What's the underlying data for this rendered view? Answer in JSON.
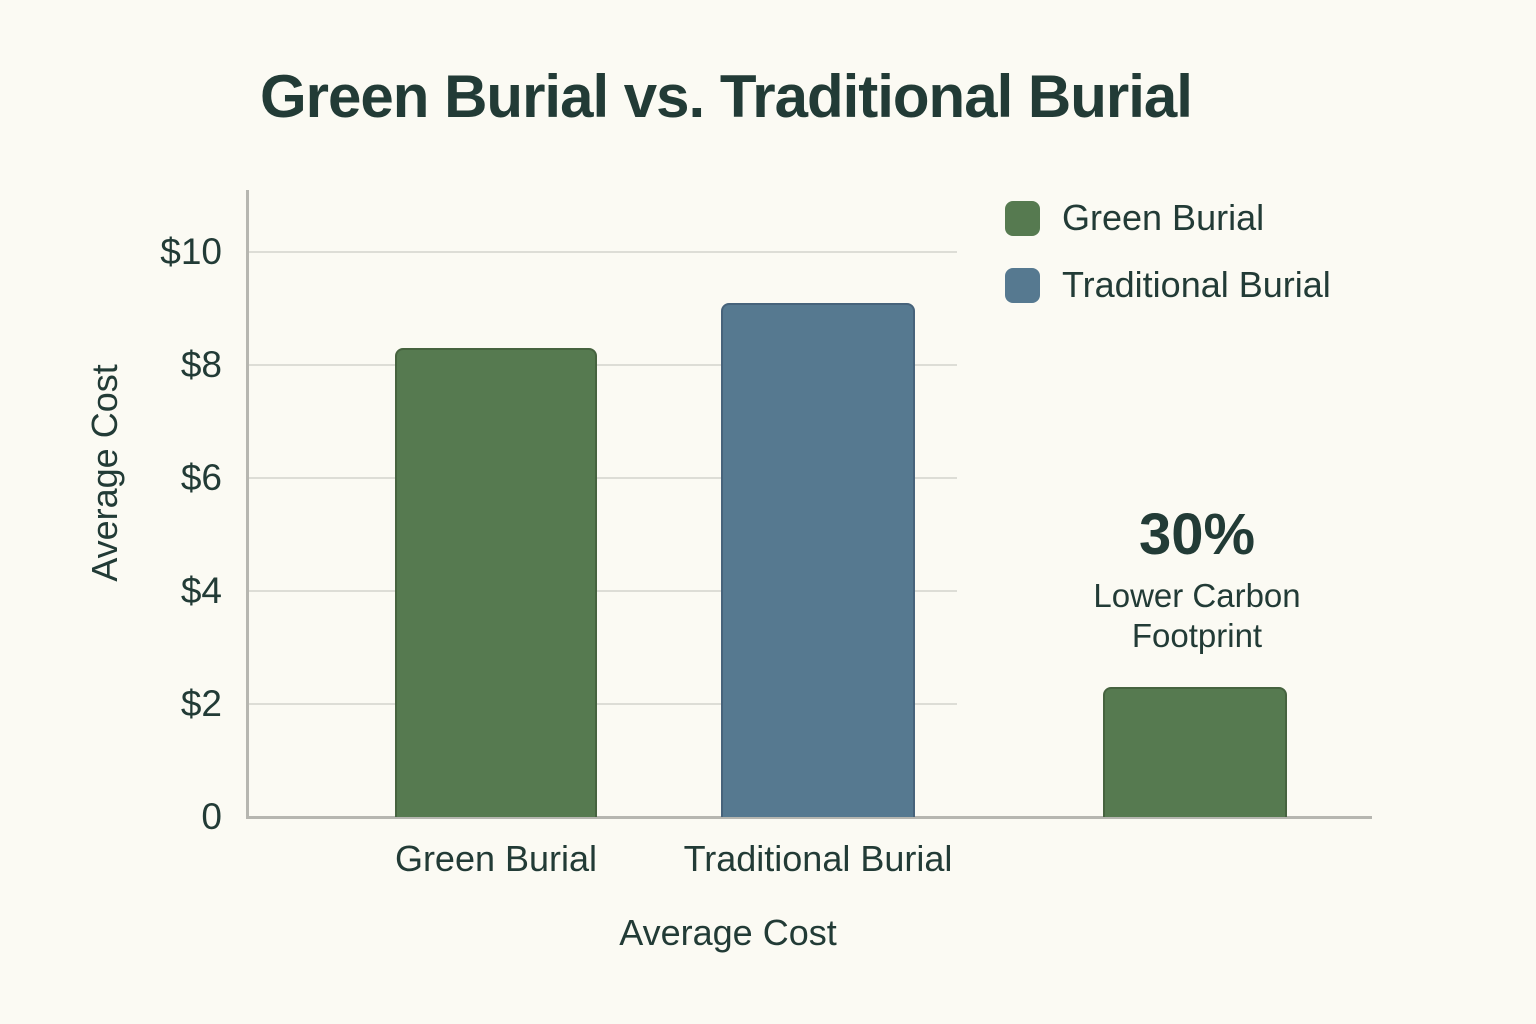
{
  "chart_data": {
    "type": "bar",
    "title": "Green Burial vs. Traditional Burial",
    "xlabel": "Average Cost",
    "ylabel": "Average Cost",
    "categories": [
      "Green Burial",
      "Traditional Burial"
    ],
    "values": [
      8.3,
      9.1
    ],
    "bar_colors": [
      "#567A50",
      "#567990"
    ],
    "ylim": [
      0,
      11.1
    ],
    "grid": true,
    "yticks": [
      {
        "value": 0,
        "label": "0"
      },
      {
        "value": 2,
        "label": "$2"
      },
      {
        "value": 4,
        "label": "$4"
      },
      {
        "value": 6,
        "label": "$6"
      },
      {
        "value": 8,
        "label": "$8"
      },
      {
        "value": 10,
        "label": "$10"
      }
    ],
    "legend": {
      "position": "top-right",
      "items": [
        {
          "label": "Green Burial",
          "color": "#567A50"
        },
        {
          "label": "Traditional Burial",
          "color": "#567990"
        }
      ]
    },
    "annotation": {
      "headline": "30%",
      "subtext": "Lower Carbon Footprint",
      "bar_value": 2.3,
      "bar_color": "#567A50"
    },
    "colors": {
      "background": "#FBFAF3",
      "text": "#223B36",
      "grid": "#DDDDD6",
      "axis": "#B6B6B0"
    }
  }
}
